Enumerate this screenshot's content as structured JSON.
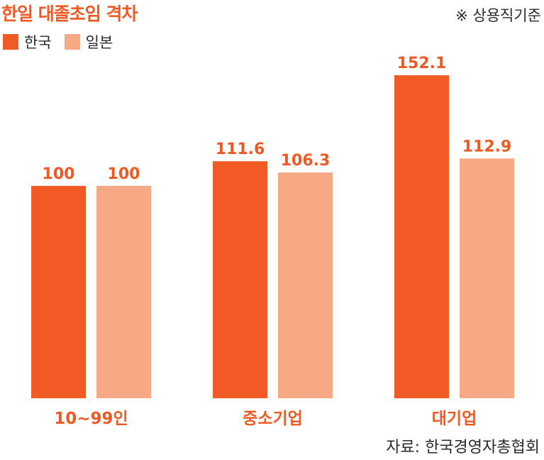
{
  "title": "한일 대졸초임 격차",
  "note": "※ 상용직기준",
  "source": "자료: 한국경영자총협회",
  "colors": {
    "korea": "#f15a24",
    "japan": "#f7a884",
    "title": "#ef5a24",
    "text": "#2a2a2a"
  },
  "chart_data": {
    "type": "bar",
    "title": "한일 대졸초임 격차",
    "categories": [
      "10~99인",
      "중소기업",
      "대기업"
    ],
    "series": [
      {
        "name": "한국",
        "values": [
          100,
          111.6,
          152.1
        ],
        "labels": [
          "100",
          "111.6",
          "152.1"
        ]
      },
      {
        "name": "일본",
        "values": [
          100,
          106.3,
          112.9
        ],
        "labels": [
          "100",
          "106.3",
          "112.9"
        ]
      }
    ],
    "xlabel": "",
    "ylabel": "",
    "ylim": [
      0,
      152.1
    ],
    "grid": false,
    "legend": "top-left"
  }
}
